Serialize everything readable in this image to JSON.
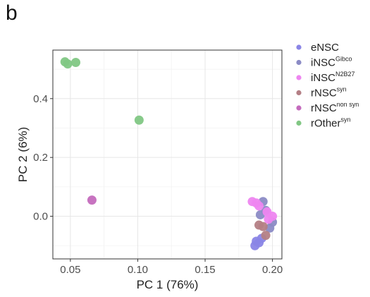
{
  "panel_label": "b",
  "chart_data": {
    "type": "scatter",
    "xlabel": "PC 1 (76%)",
    "ylabel": "PC 2 (6%)",
    "xlim": [
      0.037,
      0.207
    ],
    "ylim": [
      -0.145,
      0.565
    ],
    "xticks": [
      0.05,
      0.1,
      0.15,
      0.2
    ],
    "xtick_labels": [
      "0.05",
      "0.10",
      "0.15",
      "0.20"
    ],
    "yticks": [
      0.0,
      0.2,
      0.4
    ],
    "ytick_labels": [
      "0.0",
      "0.2",
      "0.4"
    ],
    "grid": true,
    "legend_position": "right",
    "series": [
      {
        "name": "eNSC",
        "base": "eNSC",
        "sup": "",
        "color": "#8a85e6",
        "points": [
          [
            0.188,
            -0.085
          ],
          [
            0.192,
            -0.075
          ],
          [
            0.187,
            -0.1
          ],
          [
            0.19,
            -0.09
          ]
        ]
      },
      {
        "name": "iNSC Gibco",
        "base": "iNSC",
        "sup": "Gibco",
        "color": "#8b8bc5",
        "points": [
          [
            0.193,
            0.05
          ],
          [
            0.191,
            0.005
          ],
          [
            0.198,
            -0.04
          ],
          [
            0.2,
            -0.02
          ],
          [
            0.195,
            0.02
          ]
        ]
      },
      {
        "name": "iNSC N2B27",
        "base": "iNSC",
        "sup": "N2B27",
        "color": "#ee86f0",
        "points": [
          [
            0.185,
            0.05
          ],
          [
            0.188,
            0.045
          ],
          [
            0.196,
            0.015
          ],
          [
            0.2,
            0.0
          ],
          [
            0.197,
            -0.01
          ],
          [
            0.19,
            0.035
          ]
        ]
      },
      {
        "name": "rNSC syn",
        "base": "rNSC",
        "sup": "syn",
        "color": "#b47f85",
        "points": [
          [
            0.19,
            -0.03
          ],
          [
            0.195,
            -0.065
          ],
          [
            0.193,
            -0.035
          ]
        ]
      },
      {
        "name": "rNSC non syn",
        "base": "rNSC",
        "sup": "non syn",
        "color": "#c46bbd",
        "points": [
          [
            0.066,
            0.055
          ]
        ]
      },
      {
        "name": "rOther syn",
        "base": "rOther",
        "sup": "syn",
        "color": "#81c784",
        "points": [
          [
            0.046,
            0.525
          ],
          [
            0.048,
            0.518
          ],
          [
            0.054,
            0.523
          ],
          [
            0.101,
            0.327
          ]
        ]
      }
    ]
  }
}
